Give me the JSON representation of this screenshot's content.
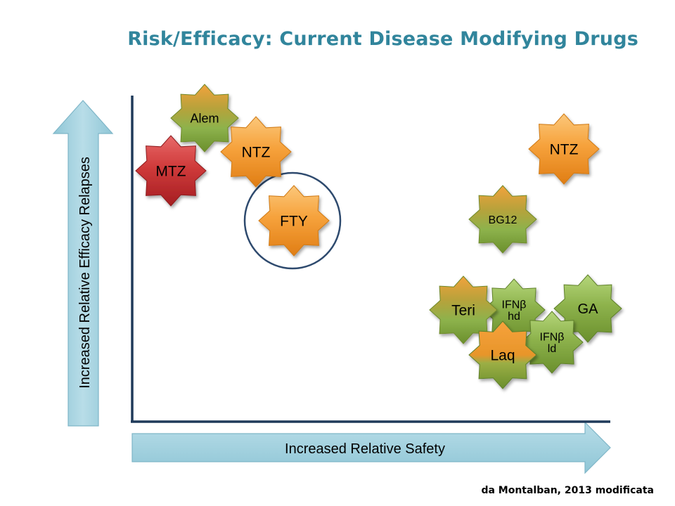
{
  "slide": {
    "title": "Risk/Efficacy: Current Disease Modifying Drugs",
    "source_note": "da Montalban, 2013 modificata"
  },
  "axes": {
    "y_label": "Increased Relative Efficacy Relapses",
    "x_label": "Increased Relative Safety"
  },
  "colors": {
    "title": "#31859c",
    "arrow_fill": "#a9d3e0",
    "arrow_stroke": "#7fb6c8",
    "axis_line": "#1f3a5a",
    "highlight_circle": "#2e4a6e",
    "star_orange": "#f29a2e",
    "star_green": "#7fa33c",
    "star_green_orange": "#e0901f",
    "star_red": "#c0282d"
  },
  "drugs": [
    {
      "id": "alem",
      "label": "Alem",
      "lines": [
        "Alem"
      ],
      "style": "green-orange"
    },
    {
      "id": "ntz-left",
      "label": "NTZ",
      "lines": [
        "NTZ"
      ],
      "style": "orange"
    },
    {
      "id": "mtz",
      "label": "MTZ",
      "lines": [
        "MTZ"
      ],
      "style": "red"
    },
    {
      "id": "fty",
      "label": "FTY",
      "lines": [
        "FTY"
      ],
      "style": "orange",
      "highlighted": true
    },
    {
      "id": "ntz-right",
      "label": "NTZ",
      "lines": [
        "NTZ"
      ],
      "style": "orange"
    },
    {
      "id": "bg12",
      "label": "BG12",
      "lines": [
        "BG12"
      ],
      "style": "green-orange"
    },
    {
      "id": "ga",
      "label": "GA",
      "lines": [
        "GA"
      ],
      "style": "green"
    },
    {
      "id": "ifnb-hd",
      "label": "IFNβ hd",
      "lines": [
        "IFNβ",
        "hd"
      ],
      "style": "green"
    },
    {
      "id": "teri",
      "label": "Teri",
      "lines": [
        "Teri"
      ],
      "style": "green-orange"
    },
    {
      "id": "ifnb-ld",
      "label": "IFNβ ld",
      "lines": [
        "IFNβ",
        "ld"
      ],
      "style": "green"
    },
    {
      "id": "laq",
      "label": "Laq",
      "lines": [
        "Laq"
      ],
      "style": "orange-green"
    }
  ]
}
